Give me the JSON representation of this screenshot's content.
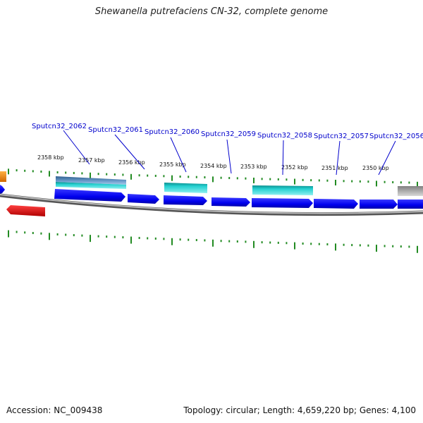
{
  "title": "Shewanella putrefaciens CN-32, complete genome",
  "accession_text": "Accession: NC_009438",
  "stats_text": "Topology: circular; Length: 4,659,220 bp; Genes: 4,100",
  "gene_labels": [
    "Sputcn32_2062",
    "Sputcn32_2061",
    "Sputcn32_2060",
    "Sputcn32_2059",
    "Sputcn32_2058",
    "Sputcn32_2057",
    "Sputcn32_2056"
  ],
  "kbp_ticks": [
    "2358 kbp",
    "2357 kbp",
    "2356 kbp",
    "2355 kbp",
    "2354 kbp",
    "2353 kbp",
    "2352 kbp",
    "2351 kbp",
    "2350 kbp"
  ],
  "colors": {
    "cds": "#0000ee",
    "cds_alt": "#00bcd4",
    "cds_steel": "#4682b4",
    "cds_red": "#ee0000",
    "cds_orange": "#ff8c00",
    "cds_gray": "#b0b0b0",
    "backbone": "#888888",
    "tick": "#228b22",
    "label": "#0000cc"
  }
}
